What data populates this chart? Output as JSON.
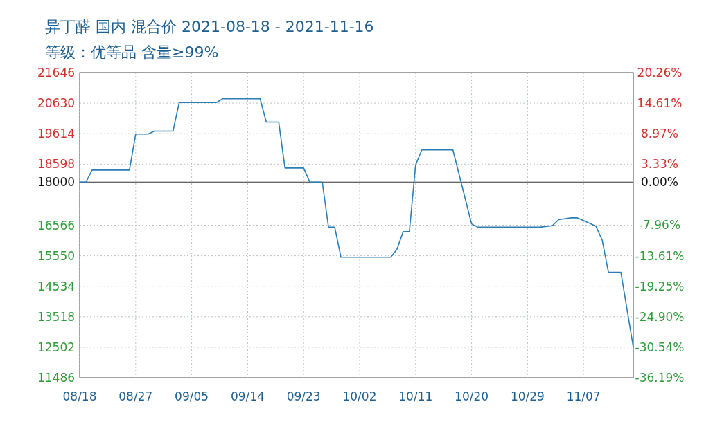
{
  "chart_data": {
    "type": "line",
    "title": "异丁醛 国内 混合价 2021-08-18 - 2021-11-16",
    "subtitle": "等级：优等品 含量≥99%",
    "x": [
      "2021-08-18",
      "2021-08-19",
      "2021-08-20",
      "2021-08-26",
      "2021-08-27",
      "2021-08-29",
      "2021-08-30",
      "2021-09-02",
      "2021-09-03",
      "2021-09-09",
      "2021-09-10",
      "2021-09-16",
      "2021-09-17",
      "2021-09-19",
      "2021-09-20",
      "2021-09-23",
      "2021-09-24",
      "2021-09-26",
      "2021-09-27",
      "2021-09-28",
      "2021-09-29",
      "2021-10-07",
      "2021-10-08",
      "2021-10-09",
      "2021-10-10",
      "2021-10-11",
      "2021-10-12",
      "2021-10-17",
      "2021-10-20",
      "2021-10-21",
      "2021-10-31",
      "2021-11-02",
      "2021-11-03",
      "2021-11-05",
      "2021-11-06",
      "2021-11-07",
      "2021-11-09",
      "2021-11-10",
      "2021-11-11",
      "2021-11-13",
      "2021-11-15"
    ],
    "series": [
      {
        "color": "#2a7db5",
        "values": [
          18000,
          18000,
          18400,
          18400,
          19600,
          19600,
          19700,
          19700,
          20650,
          20650,
          20780,
          20780,
          20000,
          20000,
          18470,
          18470,
          18000,
          18000,
          16500,
          16500,
          15500,
          15500,
          15760,
          16350,
          16350,
          18570,
          19070,
          19070,
          16610,
          16500,
          16500,
          16550,
          16750,
          16810,
          16810,
          16720,
          16530,
          16070,
          15000,
          15000,
          12500
        ]
      }
    ],
    "xlim": [
      "2021-08-18",
      "2021-11-15"
    ],
    "xticks": [
      {
        "value": "2021-08-18",
        "label": "08/18"
      },
      {
        "value": "2021-08-27",
        "label": "08/27"
      },
      {
        "value": "2021-09-05",
        "label": "09/05"
      },
      {
        "value": "2021-09-14",
        "label": "09/14"
      },
      {
        "value": "2021-09-23",
        "label": "09/23"
      },
      {
        "value": "2021-10-02",
        "label": "10/02"
      },
      {
        "value": "2021-10-11",
        "label": "10/11"
      },
      {
        "value": "2021-10-20",
        "label": "10/20"
      },
      {
        "value": "2021-10-29",
        "label": "10/29"
      },
      {
        "value": "2021-11-07",
        "label": "11/07"
      }
    ],
    "ylim": [
      11486,
      21646
    ],
    "yticks": [
      11486,
      12502,
      13518,
      14534,
      15550,
      16566,
      18000,
      18598,
      19614,
      20630,
      21646
    ],
    "y2lim": [
      -36.19,
      20.26
    ],
    "y2ticks": [
      {
        "value": -36.19,
        "label": "-36.19%"
      },
      {
        "value": -30.54,
        "label": "-30.54%"
      },
      {
        "value": -24.9,
        "label": "-24.90%"
      },
      {
        "value": -19.25,
        "label": "-19.25%"
      },
      {
        "value": -13.61,
        "label": "-13.61%"
      },
      {
        "value": -7.96,
        "label": "-7.96%"
      },
      {
        "value": 0,
        "label": "0.00%"
      },
      {
        "value": 3.33,
        "label": "3.33%"
      },
      {
        "value": 8.97,
        "label": "8.97%"
      },
      {
        "value": 14.61,
        "label": "14.61%"
      },
      {
        "value": 20.26,
        "label": "20.26%"
      }
    ],
    "ref_lines": [
      {
        "axis": "y",
        "value": 18000,
        "color": "#333333",
        "line_style": "solid"
      }
    ],
    "grid": true,
    "marker": "none",
    "line_style": "solid"
  }
}
